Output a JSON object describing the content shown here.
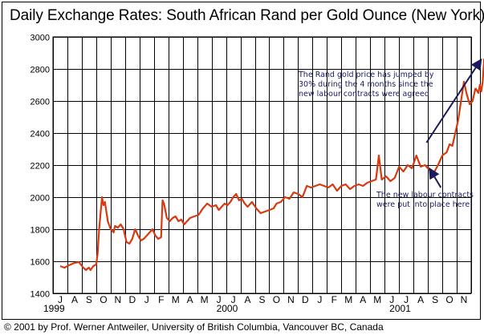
{
  "chart_data": {
    "type": "line",
    "title": "Daily Exchange Rates: South African Rand per Gold Ounce (New York)",
    "xlabel": "",
    "ylabel": "",
    "ylim": [
      1400,
      3000
    ],
    "yticks": [
      1400,
      1600,
      1800,
      2000,
      2200,
      2400,
      2600,
      2800,
      3000
    ],
    "month_labels": [
      "J",
      "A",
      "S",
      "O",
      "N",
      "D",
      "J",
      "F",
      "M",
      "A",
      "M",
      "J",
      "J",
      "A",
      "S",
      "O",
      "N",
      "D",
      "J",
      "F",
      "M",
      "A",
      "M",
      "J",
      "J",
      "A",
      "S",
      "O",
      "N"
    ],
    "year_labels": [
      {
        "label": "1999",
        "month_index": 0
      },
      {
        "label": "2000",
        "month_index": 12
      },
      {
        "label": "2001",
        "month_index": 24
      }
    ],
    "grid": true,
    "series": [
      {
        "name": "Rand per gold ounce",
        "color": "#d83a10",
        "x_month": [
          0,
          0.3,
          0.6,
          1.0,
          1.3,
          1.6,
          1.8,
          1.9,
          2.0,
          2.1,
          2.3,
          2.5,
          2.6,
          2.7,
          2.8,
          2.9,
          3.0,
          3.1,
          3.3,
          3.5,
          3.7,
          3.8,
          4.0,
          4.2,
          4.4,
          4.6,
          4.8,
          5.0,
          5.2,
          5.4,
          5.6,
          5.8,
          6.0,
          6.2,
          6.4,
          6.6,
          6.8,
          7.0,
          7.1,
          7.2,
          7.4,
          7.6,
          7.8,
          8.0,
          8.2,
          8.4,
          8.6,
          8.8,
          9.0,
          9.3,
          9.6,
          9.9,
          10.2,
          10.5,
          10.8,
          11.0,
          11.2,
          11.4,
          11.6,
          11.8,
          12.0,
          12.2,
          12.4,
          12.6,
          12.8,
          13.0,
          13.3,
          13.6,
          13.9,
          14.2,
          14.5,
          14.8,
          15.0,
          15.3,
          15.6,
          15.9,
          16.2,
          16.5,
          16.8,
          17.1,
          17.4,
          17.7,
          18.0,
          18.3,
          18.6,
          18.9,
          19.2,
          19.5,
          19.8,
          20.1,
          20.4,
          20.7,
          21.0,
          21.3,
          21.6,
          21.9,
          22.1,
          22.3,
          22.6,
          22.9,
          23.2,
          23.5,
          23.8,
          24.1,
          24.4,
          24.7,
          25.0,
          25.3,
          25.6,
          25.9,
          26.2,
          26.5,
          26.8,
          27.0,
          27.2,
          27.4,
          27.6,
          27.8,
          28.0,
          28.2,
          28.4,
          28.6,
          28.8
        ],
        "values": [
          1570,
          1560,
          1575,
          1590,
          1595,
          1560,
          1545,
          1555,
          1560,
          1545,
          1570,
          1580,
          1650,
          1800,
          1900,
          2000,
          1950,
          1970,
          1850,
          1800,
          1780,
          1820,
          1810,
          1830,
          1800,
          1720,
          1710,
          1740,
          1800,
          1760,
          1730,
          1740,
          1760,
          1780,
          1800,
          1760,
          1740,
          1750,
          1980,
          1960,
          1870,
          1850,
          1870,
          1880,
          1850,
          1860,
          1830,
          1850,
          1870,
          1880,
          1890,
          1930,
          1960,
          1940,
          1950,
          1920,
          1940,
          1960,
          1950,
          1970,
          2000,
          2020,
          1980,
          1990,
          1960,
          1940,
          1970,
          1930,
          1900,
          1910,
          1920,
          1930,
          1960,
          1970,
          2000,
          1990,
          2030,
          2020,
          2000,
          2070,
          2060,
          2070,
          2080,
          2070,
          2060,
          2080,
          2040,
          2070,
          2080,
          2050,
          2070,
          2080,
          2070,
          2090,
          2100,
          2110,
          2260,
          2110,
          2130,
          2100,
          2120,
          2190,
          2160,
          2200,
          2180,
          2260,
          2190,
          2200,
          2170,
          2150,
          2200,
          2260,
          2280,
          2330,
          2320,
          2400,
          2480,
          2600,
          2720,
          2640,
          2580,
          2600,
          2680
        ]
      },
      {
        "name": "end",
        "color": "#d83a10",
        "x_month": [
          28.8,
          29.0,
          29.1,
          29.2,
          29.3,
          29.4,
          29.5
        ],
        "values": [
          2680,
          2650,
          2700,
          2660,
          2720,
          2860,
          2850
        ]
      }
    ],
    "annotations": [
      {
        "id": "top",
        "lines": [
          "The Rand gold price has jumped by",
          "30% during the 4 months since the",
          "new labour contracts were agreed"
        ],
        "arrow_from": {
          "x_month": 25.4,
          "value": 2340
        },
        "arrow_to": {
          "x_month": 29.2,
          "value": 2860
        }
      },
      {
        "id": "bottom",
        "lines": [
          "The new labour contracts",
          "were put into place here"
        ],
        "arrow_from": {
          "x_month": 26.4,
          "value": 2060
        },
        "arrow_to": {
          "x_month": 25.6,
          "value": 2180
        }
      }
    ]
  },
  "footer": {
    "copyright": "© 2001 by Prof. Werner Antweiler, University of British Columbia, Vancouver BC, Canada"
  }
}
